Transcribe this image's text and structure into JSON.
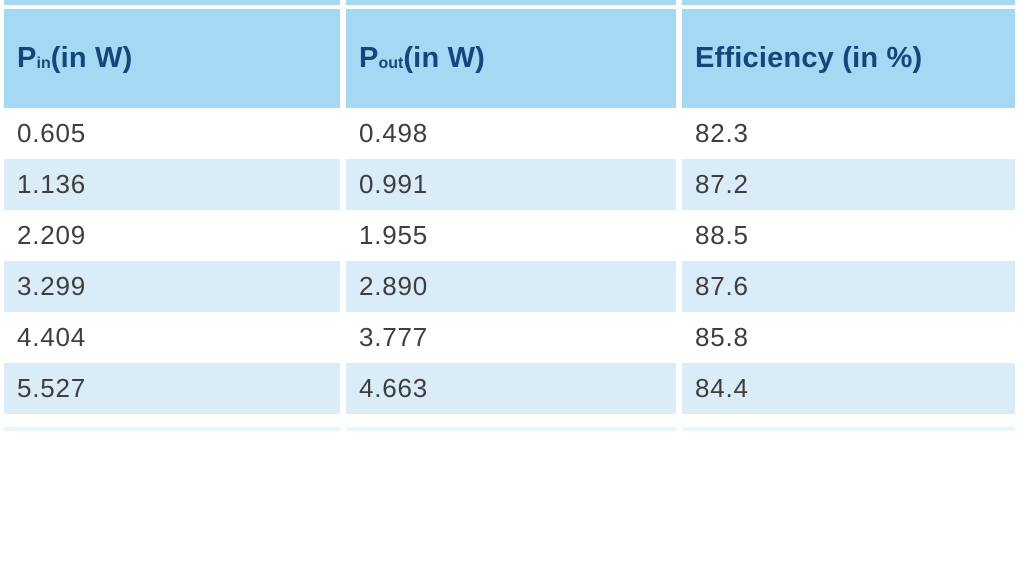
{
  "colors": {
    "page_bg": "#ffffff",
    "header_bg": "#a4d8f3",
    "header_text": "#154579",
    "row_alt_bg": "#d9ecf8",
    "row_text": "#3e3e3e",
    "remnant_strip": "#e9f4fb"
  },
  "table": {
    "columns": [
      {
        "pre": "P",
        "sub": "in",
        "post": " (in W)"
      },
      {
        "pre": "P",
        "sub": "out",
        "post": " (in W)"
      },
      {
        "pre": "Efficiency (in %)",
        "sub": "",
        "post": ""
      }
    ],
    "rows": [
      [
        "0.605",
        "0.498",
        "82.3"
      ],
      [
        "1.136",
        "0.991",
        "87.2"
      ],
      [
        "2.209",
        "1.955",
        "88.5"
      ],
      [
        "3.299",
        "2.890",
        "87.6"
      ],
      [
        "4.404",
        "3.777",
        "85.8"
      ],
      [
        "5.527",
        "4.663",
        "84.4"
      ]
    ]
  },
  "chart_data": {
    "type": "table",
    "title": "",
    "columns": [
      "P_in (in W)",
      "P_out (in W)",
      "Efficiency (in %)"
    ],
    "rows": [
      [
        0.605,
        0.498,
        82.3
      ],
      [
        1.136,
        0.991,
        87.2
      ],
      [
        2.209,
        1.955,
        88.5
      ],
      [
        3.299,
        2.89,
        87.6
      ],
      [
        4.404,
        3.777,
        85.8
      ],
      [
        5.527,
        4.663,
        84.4
      ]
    ],
    "layout_hints": {
      "header_fill": "#a4d8f3",
      "zebra_fill": "#d9ecf8",
      "zebra_rows": "even rows shaded, starting with row 2",
      "gridlines": "white gutters between columns, no cell borders"
    }
  }
}
